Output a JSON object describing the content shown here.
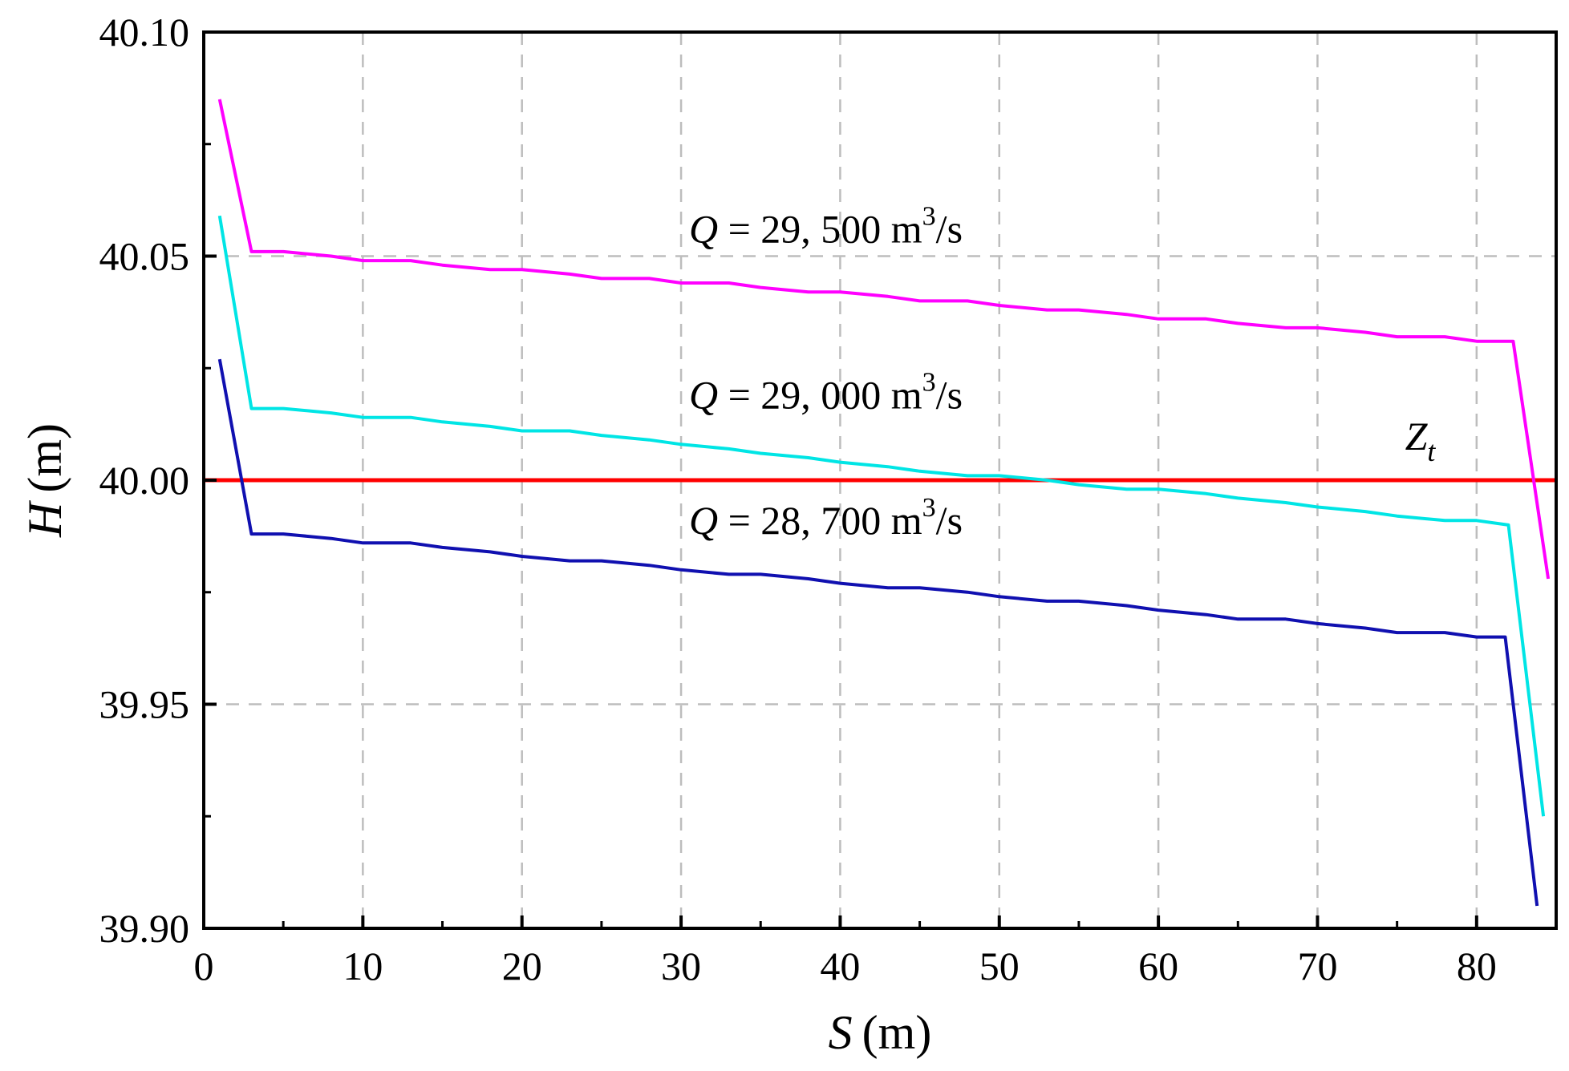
{
  "chart_data": {
    "type": "line",
    "xlabel": "S (m)",
    "ylabel": "H (m)",
    "xlabel_var": "S",
    "ylabel_var": "H",
    "unit": "(m)",
    "xlim": [
      0,
      85
    ],
    "ylim": [
      39.9,
      40.1
    ],
    "x_ticks": [
      "0",
      "10",
      "20",
      "30",
      "40",
      "50",
      "60",
      "70",
      "80"
    ],
    "y_ticks": [
      "39.90",
      "39.95",
      "40.00",
      "40.05",
      "40.10"
    ],
    "grid": true,
    "series": [
      {
        "name": "Q = 29,500 m3/s",
        "color": "#ff00ff",
        "x": [
          1,
          3,
          5,
          8,
          10,
          13,
          15,
          18,
          20,
          23,
          25,
          28,
          30,
          33,
          35,
          38,
          40,
          43,
          45,
          48,
          50,
          53,
          55,
          58,
          60,
          63,
          65,
          68,
          70,
          73,
          75,
          78,
          80,
          82.3,
          84.5
        ],
        "y": [
          40.085,
          40.051,
          40.051,
          40.05,
          40.049,
          40.049,
          40.048,
          40.047,
          40.047,
          40.046,
          40.045,
          40.045,
          40.044,
          40.044,
          40.043,
          40.042,
          40.042,
          40.041,
          40.04,
          40.04,
          40.039,
          40.038,
          40.038,
          40.037,
          40.036,
          40.036,
          40.035,
          40.034,
          40.034,
          40.033,
          40.032,
          40.032,
          40.031,
          40.031,
          39.978
        ]
      },
      {
        "name": "Q = 29,000 m3/s",
        "color": "#00e5e5",
        "x": [
          1,
          3,
          5,
          8,
          10,
          13,
          15,
          18,
          20,
          23,
          25,
          28,
          30,
          33,
          35,
          38,
          40,
          43,
          45,
          48,
          50,
          53,
          55,
          58,
          60,
          63,
          65,
          68,
          70,
          73,
          75,
          78,
          80,
          82.0,
          84.2
        ],
        "y": [
          40.059,
          40.016,
          40.016,
          40.015,
          40.014,
          40.014,
          40.013,
          40.012,
          40.011,
          40.011,
          40.01,
          40.009,
          40.008,
          40.007,
          40.006,
          40.005,
          40.004,
          40.003,
          40.002,
          40.001,
          40.001,
          40.0,
          39.999,
          39.998,
          39.998,
          39.997,
          39.996,
          39.995,
          39.994,
          39.993,
          39.992,
          39.991,
          39.991,
          39.99,
          39.925
        ]
      },
      {
        "name": "Q = 28,700 m3/s",
        "color": "#1010b0",
        "x": [
          1,
          3,
          5,
          8,
          10,
          13,
          15,
          18,
          20,
          23,
          25,
          28,
          30,
          33,
          35,
          38,
          40,
          43,
          45,
          48,
          50,
          53,
          55,
          58,
          60,
          63,
          65,
          68,
          70,
          73,
          75,
          78,
          80,
          81.8,
          83.8
        ],
        "y": [
          40.027,
          39.988,
          39.988,
          39.987,
          39.986,
          39.986,
          39.985,
          39.984,
          39.983,
          39.982,
          39.982,
          39.981,
          39.98,
          39.979,
          39.979,
          39.978,
          39.977,
          39.976,
          39.976,
          39.975,
          39.974,
          39.973,
          39.973,
          39.972,
          39.971,
          39.97,
          39.969,
          39.969,
          39.968,
          39.967,
          39.966,
          39.966,
          39.965,
          39.965,
          39.905
        ]
      }
    ],
    "reference_line": {
      "name": "Zt",
      "y": 40.0,
      "color": "#ff0000",
      "label_main": "Z",
      "label_sub": "t"
    },
    "annotations": [
      {
        "var": "Q",
        "text": " = 29, 500 m",
        "sup": "3",
        "tail": "/s",
        "x": 30.5,
        "y": 40.053
      },
      {
        "var": "Q",
        "text": " = 29, 000 m",
        "sup": "3",
        "tail": "/s",
        "x": 30.5,
        "y": 40.016
      },
      {
        "var": "Q",
        "text": " = 28, 700 m",
        "sup": "3",
        "tail": "/s",
        "x": 30.5,
        "y": 39.988
      }
    ],
    "zt_label_pos": {
      "x": 75.5,
      "y": 40.01
    }
  }
}
